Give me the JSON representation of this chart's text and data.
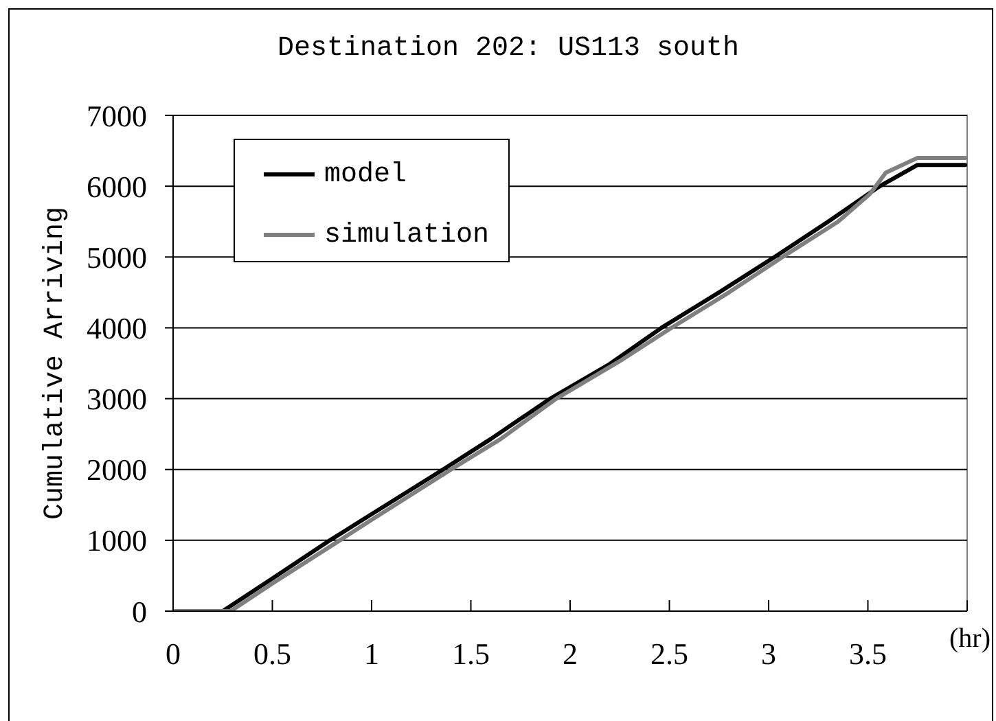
{
  "chart_data": {
    "type": "line",
    "title": "Destination 202: US113 south",
    "xlabel": "(hr)",
    "ylabel": "Cumulative Arriving",
    "xlim": [
      0,
      4
    ],
    "xticks": [
      0,
      0.5,
      1,
      1.5,
      2,
      2.5,
      3,
      3.5,
      {
        "value": 4,
        "label": null
      }
    ],
    "ylim": [
      0,
      7000
    ],
    "yticks": [
      0,
      1000,
      2000,
      3000,
      4000,
      5000,
      6000,
      7000
    ],
    "grid": "y",
    "legend": "top left",
    "series": [
      {
        "name": "model",
        "color": "#000000",
        "x": [
          0,
          0.25,
          0.5,
          0.79,
          1.0,
          1.36,
          1.6,
          1.9,
          2.2,
          2.46,
          2.75,
          3.03,
          3.3,
          3.56,
          3.75,
          3.99
        ],
        "values": [
          0,
          0,
          460,
          1000,
          1370,
          2000,
          2430,
          3000,
          3490,
          4000,
          4500,
          5000,
          5500,
          6000,
          6300,
          6300
        ]
      },
      {
        "name": "simulation",
        "color": "#808080",
        "x": [
          0,
          0.29,
          0.5,
          0.84,
          1.0,
          1.4,
          1.65,
          1.93,
          2.25,
          2.51,
          2.8,
          3.07,
          3.35,
          3.51,
          3.59,
          3.75,
          3.99
        ],
        "values": [
          0,
          0,
          390,
          1000,
          1290,
          2000,
          2430,
          3000,
          3530,
          4000,
          4500,
          5000,
          5500,
          5890,
          6190,
          6400,
          6400
        ]
      }
    ]
  }
}
